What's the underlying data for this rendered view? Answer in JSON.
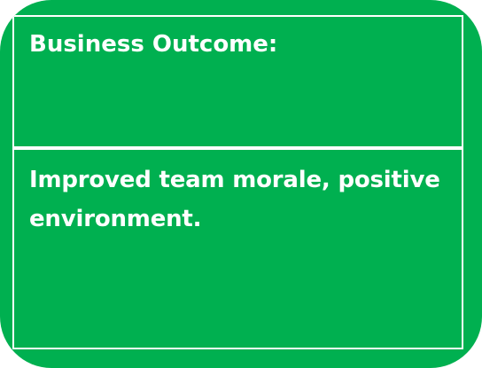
{
  "card": {
    "heading": "Business Outcome:",
    "body": "Improved team morale, positive environment.",
    "colors": {
      "background": "#00b050",
      "text": "#ffffff",
      "border": "#ffffff"
    }
  }
}
